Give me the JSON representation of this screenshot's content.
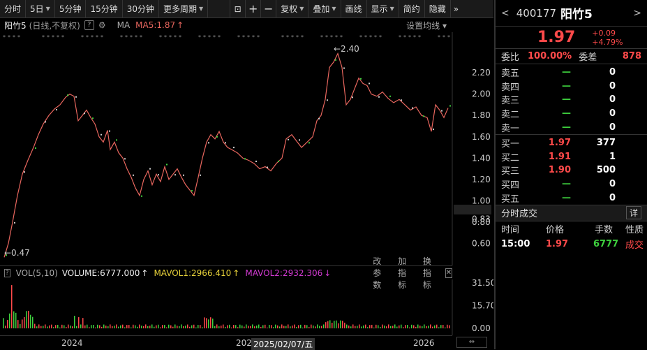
{
  "toolbar": {
    "periods": [
      "分时",
      "5日",
      "5分钟",
      "15分钟",
      "30分钟",
      "更多周期"
    ],
    "tools": [
      "复权",
      "叠加",
      "画线",
      "显示",
      "简约",
      "隐藏"
    ]
  },
  "chart_header": {
    "name": "阳竹5",
    "subtitle": "(日线,不复权)",
    "ma_label": "MA",
    "ma5": "MA5:1.87",
    "settings": "设置均线"
  },
  "main_chart": {
    "y_ticks": [
      "2.20",
      "2.00",
      "1.80",
      "1.60",
      "1.40",
      "1.20",
      "1.00",
      "0.83",
      "0.80",
      "0.60"
    ],
    "high_label": "2.40",
    "low_label": "0.47",
    "colors": {
      "up": "#ff4a4a",
      "line": "#e8665e",
      "bg": "#000000"
    }
  },
  "volume_header": {
    "label": "VOL(5,10)",
    "volume": "VOLUME:6777.000",
    "mavol1": "MAVOL1:2966.410",
    "mavol2": "MAVOL2:2932.306",
    "actions": [
      "改参数",
      "加指标",
      "换指标"
    ]
  },
  "volume_chart": {
    "y_ticks": [
      "31.50",
      "15.70",
      "0.00"
    ]
  },
  "x_axis": {
    "labels": [
      "2024",
      "202",
      "2025/02/07/五",
      "2026"
    ]
  },
  "quote": {
    "code": "400177",
    "name": "阳竹5",
    "price": "1.97",
    "change": "+0.09",
    "change_pct": "+4.79%",
    "webi_label": "委比",
    "webi_value": "100.00%",
    "weicha_label": "委差",
    "weicha_value": "878",
    "asks": [
      {
        "label": "卖五",
        "price": "—",
        "vol": "0"
      },
      {
        "label": "卖四",
        "price": "—",
        "vol": "0"
      },
      {
        "label": "卖三",
        "price": "—",
        "vol": "0"
      },
      {
        "label": "卖二",
        "price": "—",
        "vol": "0"
      },
      {
        "label": "卖一",
        "price": "—",
        "vol": "0"
      }
    ],
    "bids": [
      {
        "label": "买一",
        "price": "1.97",
        "vol": "377"
      },
      {
        "label": "买二",
        "price": "1.91",
        "vol": "1"
      },
      {
        "label": "买三",
        "price": "1.90",
        "vol": "500"
      },
      {
        "label": "买四",
        "price": "—",
        "vol": "0"
      },
      {
        "label": "买五",
        "price": "—",
        "vol": "0"
      }
    ],
    "trades_title": "分时成交",
    "trades_detail": "详",
    "trades_headers": [
      "时间",
      "价格",
      "手数",
      "性质"
    ],
    "trades": [
      {
        "time": "15:00",
        "price": "1.97",
        "vol": "6777",
        "nature": "成交"
      }
    ]
  }
}
